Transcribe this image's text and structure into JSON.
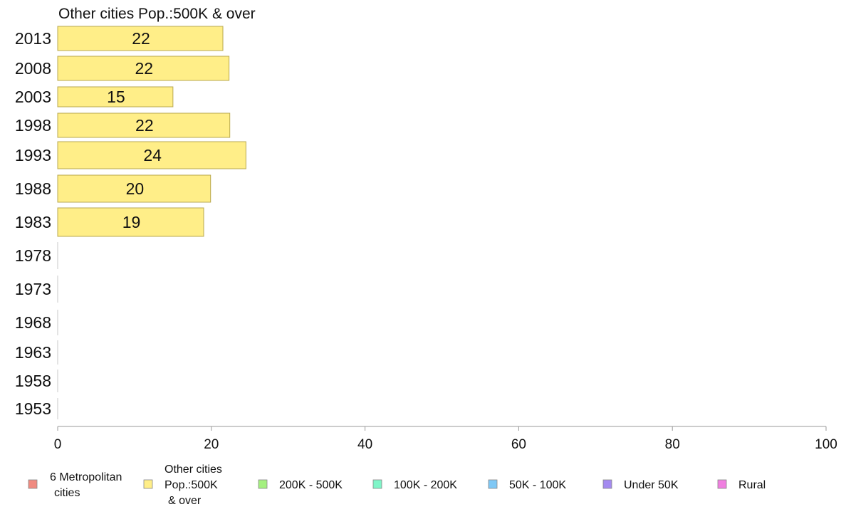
{
  "chart_data": {
    "type": "bar",
    "orientation": "horizontal",
    "title": "Other cities Pop.:500K & over",
    "xlabel": "",
    "ylabel": "",
    "xlim": [
      0,
      100
    ],
    "x_ticks": [
      "0",
      "20",
      "40",
      "60",
      "80",
      "100"
    ],
    "grid": false,
    "categories": [
      "2013",
      "2008",
      "2003",
      "1998",
      "1993",
      "1988",
      "1983",
      "1978",
      "1973",
      "1968",
      "1963",
      "1958",
      "1953"
    ],
    "series": [
      {
        "name": "Other cities Pop.:500K & over",
        "color": "#ffee88",
        "values": [
          21.5,
          22.3,
          15,
          22.4,
          24.5,
          19.9,
          19,
          0,
          0,
          0,
          0,
          0,
          0
        ],
        "data_labels": [
          "22",
          "22",
          "15",
          "22",
          "24",
          "20",
          "19",
          "",
          "",
          "",
          "",
          "",
          ""
        ]
      }
    ],
    "legend": {
      "placement": "bottom",
      "items": [
        {
          "lines": [
            "6 Metropolitan",
            "cities"
          ],
          "color": "#f08a80"
        },
        {
          "lines": [
            "Other cities",
            "Pop.:500K",
            "& over"
          ],
          "color": "#ffee88"
        },
        {
          "lines": [
            "200K - 500K"
          ],
          "color": "#a4f07f"
        },
        {
          "lines": [
            "100K - 200K"
          ],
          "color": "#7ff5c8"
        },
        {
          "lines": [
            "50K - 100K"
          ],
          "color": "#7fc8f5"
        },
        {
          "lines": [
            "Under 50K"
          ],
          "color": "#a48af0"
        },
        {
          "lines": [
            "Rural"
          ],
          "color": "#f07fe0"
        }
      ]
    }
  }
}
